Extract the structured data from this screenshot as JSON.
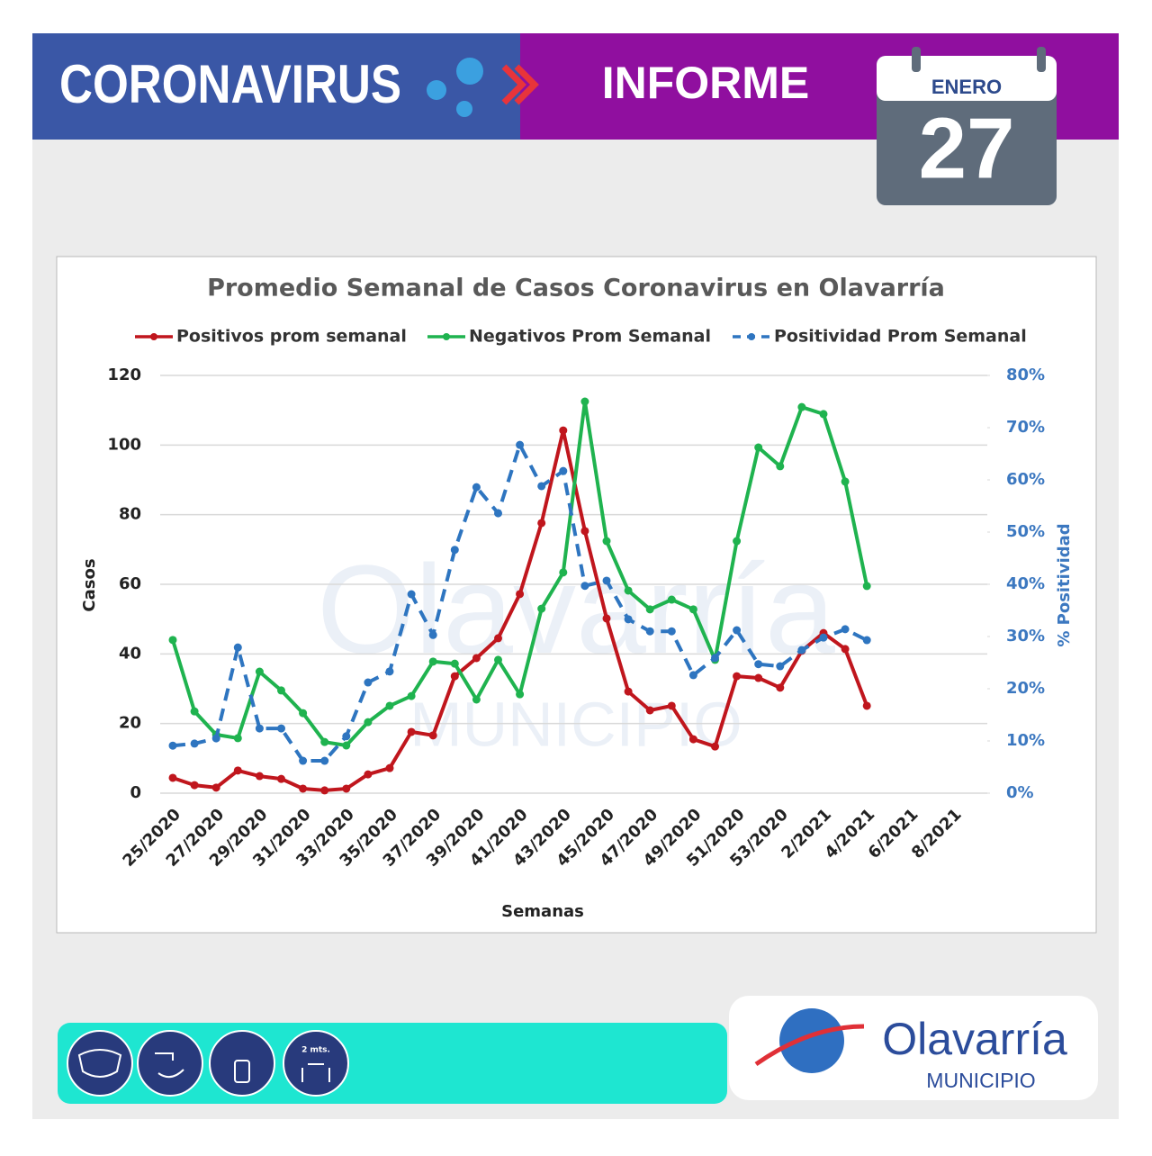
{
  "header": {
    "left_title": "CORONAVIRUS",
    "right_title": "INFORME",
    "month": "ENERO",
    "day": "27"
  },
  "chart_data": {
    "type": "line",
    "title": "Promedio Semanal de Casos Coronavirus en Olavarría",
    "x_label": "Semanas",
    "y_label": "Casos",
    "y2_label": "% Positividad",
    "categories": [
      "25/2020",
      null,
      "27/2020",
      null,
      "29/2020",
      null,
      "31/2020",
      null,
      "33/2020",
      null,
      "35/2020",
      null,
      "37/2020",
      null,
      "39/2020",
      null,
      "41/2020",
      null,
      "43/2020",
      null,
      "45/2020",
      null,
      "47/2020",
      null,
      "49/2020",
      null,
      "51/2020",
      null,
      "53/2020",
      null,
      "2/2021",
      null,
      "4/2021",
      null,
      "6/2021",
      null,
      "8/2021"
    ],
    "ylim": [
      0,
      120
    ],
    "yticks": [
      0,
      20,
      40,
      60,
      80,
      100,
      120
    ],
    "y2lim": [
      0,
      80
    ],
    "y2ticks": [
      {
        "value": 0,
        "label": "0%"
      },
      {
        "value": 10,
        "label": "10%"
      },
      {
        "value": 20,
        "label": "20%"
      },
      {
        "value": 30,
        "label": "30%"
      },
      {
        "value": 40,
        "label": "40%"
      },
      {
        "value": 50,
        "label": "50%"
      },
      {
        "value": 60,
        "label": "60%"
      },
      {
        "value": 70,
        "label": "70%"
      },
      {
        "value": 80,
        "label": "80%"
      }
    ],
    "grid": true,
    "series": [
      {
        "name": "Positivos prom semanal",
        "color": "#c0161d",
        "dashed": false,
        "values": [
          4.4,
          2.3,
          1.6,
          6.5,
          4.9,
          4.1,
          1.3,
          0.8,
          1.3,
          5.4,
          7.2,
          17.6,
          16.6,
          33.6,
          38.8,
          44.5,
          57.2,
          77.6,
          104.2,
          75.3,
          50.2,
          29.2,
          23.8,
          25.1,
          15.5,
          13.4,
          33.6,
          33.1,
          30.3,
          40.9,
          46.0,
          41.4,
          25.1,
          null,
          null,
          null,
          null
        ]
      },
      {
        "name": "Negativos Prom Semanal",
        "color": "#1fb34f",
        "dashed": false,
        "values": [
          44.0,
          23.5,
          16.8,
          15.8,
          34.9,
          29.5,
          23.0,
          14.7,
          13.7,
          20.4,
          25.1,
          27.9,
          37.8,
          37.2,
          26.9,
          38.3,
          28.4,
          53.0,
          63.4,
          112.5,
          72.4,
          58.2,
          52.8,
          55.6,
          52.8,
          38.3,
          72.4,
          99.3,
          93.9,
          110.9,
          108.9,
          89.5,
          59.5,
          null,
          null,
          null,
          null
        ]
      },
      {
        "name": "Positividad Prom Semanal",
        "color": "#2e75c0",
        "dashed": true,
        "axis": "y2",
        "values": [
          9.1,
          9.5,
          10.5,
          27.9,
          12.4,
          12.4,
          6.2,
          6.2,
          10.9,
          21.2,
          23.3,
          38.1,
          30.3,
          46.6,
          58.6,
          53.6,
          66.7,
          58.8,
          61.7,
          39.7,
          40.7,
          33.3,
          31.0,
          31.0,
          22.6,
          25.9,
          31.2,
          24.7,
          24.3,
          27.4,
          29.8,
          31.4,
          29.3,
          null,
          null,
          null,
          null
        ]
      }
    ]
  },
  "footer": {
    "distance_label": "2 mts.",
    "brand": "Olavarría",
    "brand_sub": "MUNICIPIO"
  }
}
